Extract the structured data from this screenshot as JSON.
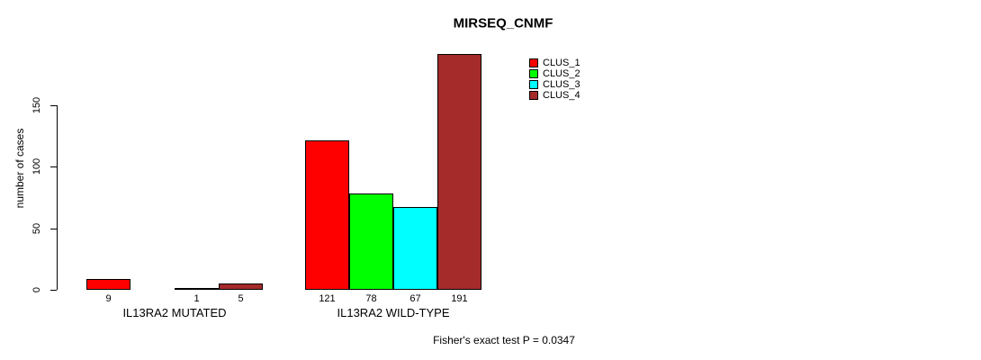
{
  "title": "MIRSEQ_CNMF",
  "footer": "Fisher's exact test P = 0.0347",
  "chart_data": {
    "type": "bar",
    "title": "MIRSEQ_CNMF",
    "xlabel": "",
    "ylabel": "number of cases",
    "groups": [
      "IL13RA2 MUTATED",
      "IL13RA2 WILD-TYPE"
    ],
    "series": [
      {
        "name": "CLUS_1",
        "color": "#FF0000",
        "values": [
          9,
          121
        ]
      },
      {
        "name": "CLUS_2",
        "color": "#00FF00",
        "values": [
          0,
          78
        ]
      },
      {
        "name": "CLUS_3",
        "color": "#00FFFF",
        "values": [
          1,
          67
        ]
      },
      {
        "name": "CLUS_4",
        "color": "#A52A2A",
        "values": [
          5,
          191
        ]
      }
    ],
    "bar_value_labels": [
      [
        "9",
        "",
        "1",
        "5"
      ],
      [
        "121",
        "78",
        "67",
        "191"
      ]
    ],
    "yticks": [
      0,
      50,
      100,
      150
    ],
    "ylim": [
      0,
      150
    ],
    "grid": false,
    "legend_position": "top-right",
    "legend_entries": [
      "CLUS_1",
      "CLUS_2",
      "CLUS_3",
      "CLUS_4"
    ],
    "annotation": "Fisher's exact test P = 0.0347",
    "bar_border_color": "#000000",
    "axis_color": "#000000"
  }
}
